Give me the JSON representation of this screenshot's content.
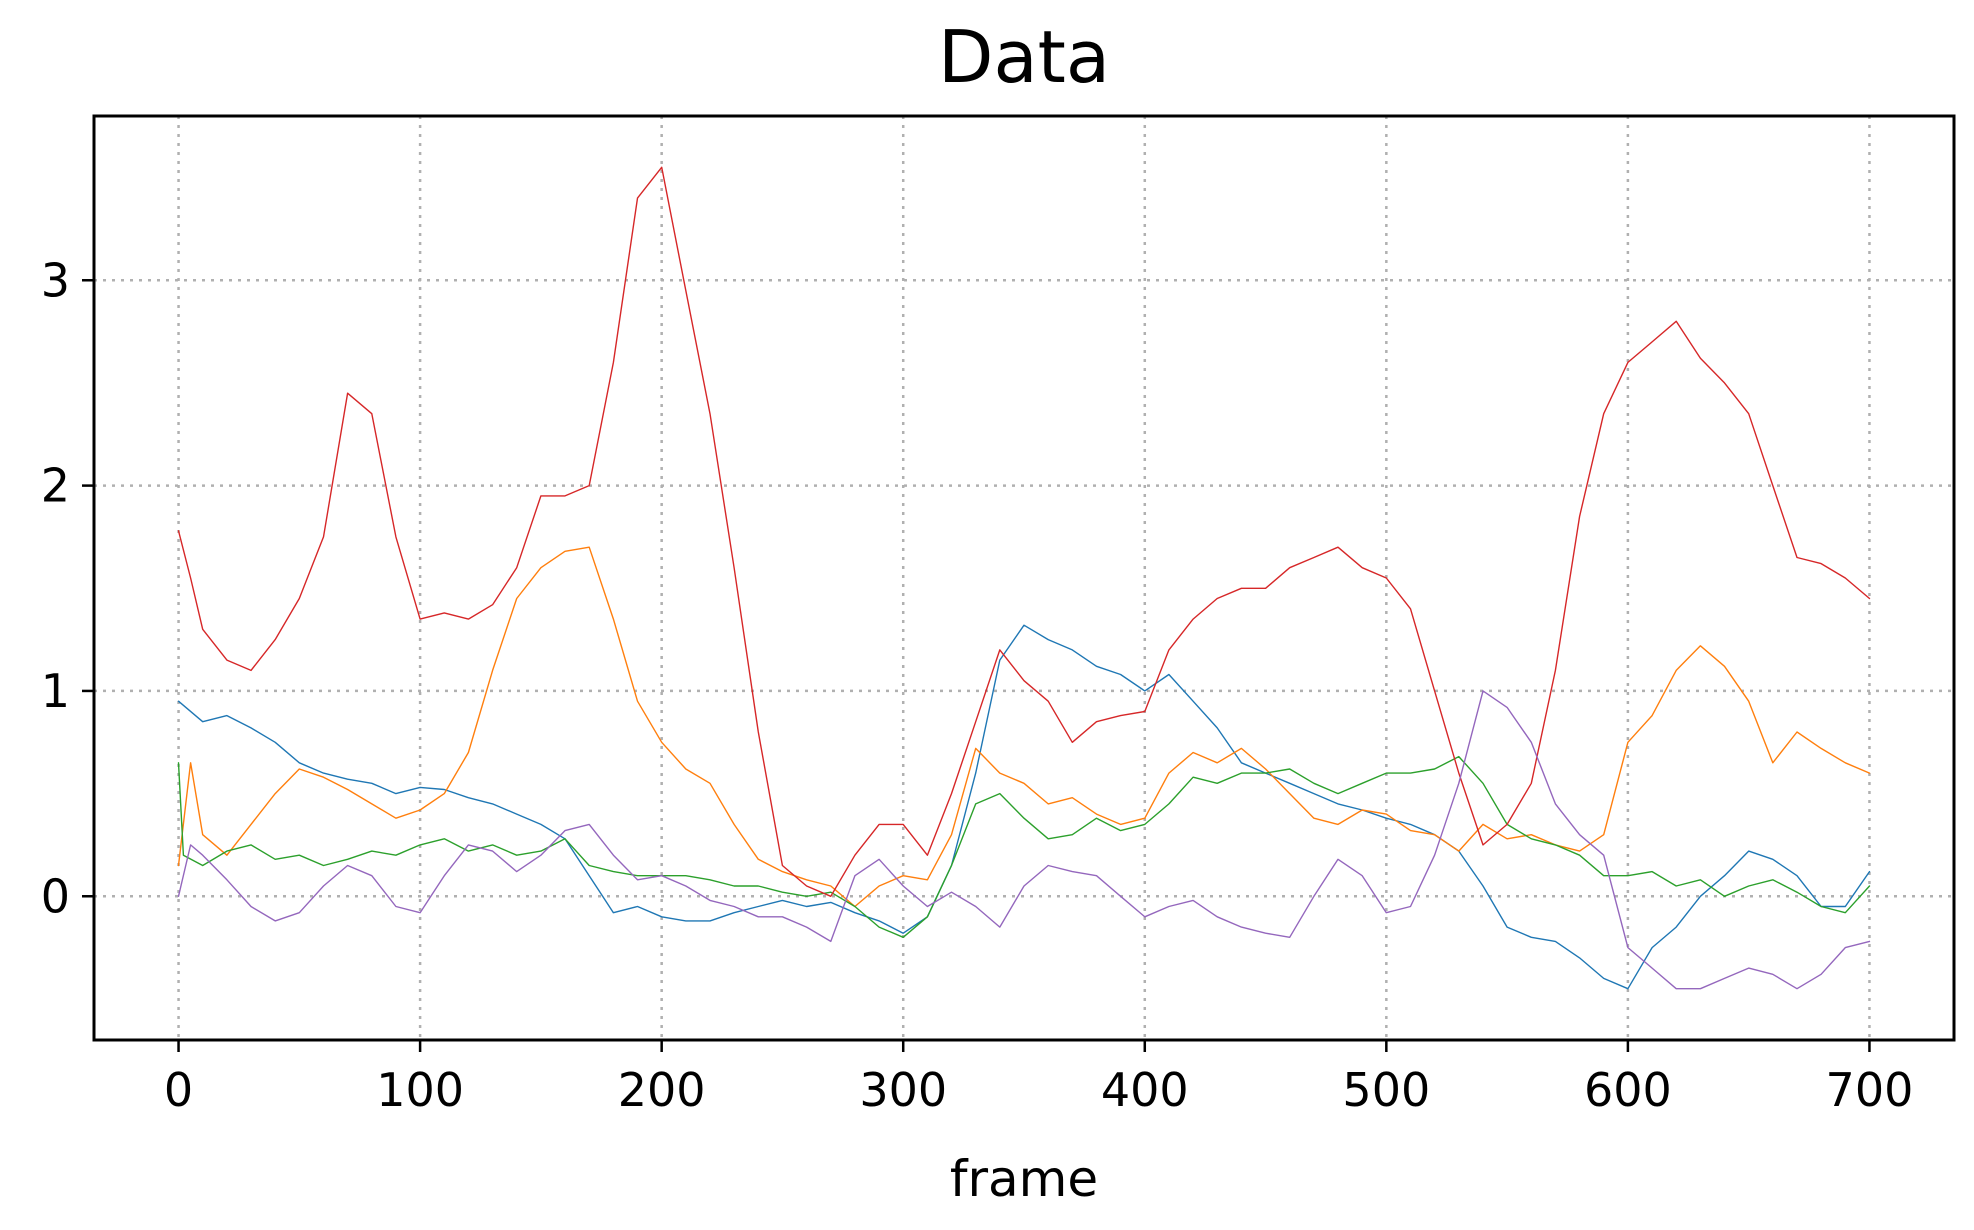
{
  "chart_data": {
    "type": "line",
    "title": "Data",
    "xlabel": "frame",
    "ylabel": "",
    "xlim": [
      -35,
      735
    ],
    "ylim": [
      -0.7,
      3.8
    ],
    "xticks": [
      0,
      100,
      200,
      300,
      400,
      500,
      600,
      700
    ],
    "xtick_labels": [
      "0",
      "100",
      "200",
      "300",
      "400",
      "500",
      "600",
      "700"
    ],
    "yticks": [
      0,
      1,
      2,
      3
    ],
    "ytick_labels": [
      "0",
      "1",
      "2",
      "3"
    ],
    "grid": true,
    "legend": "none",
    "series": [
      {
        "color": "#1f77b4",
        "x": [
          0,
          10,
          20,
          30,
          40,
          50,
          60,
          70,
          80,
          90,
          100,
          110,
          120,
          130,
          140,
          150,
          160,
          170,
          180,
          190,
          200,
          210,
          220,
          230,
          240,
          250,
          260,
          270,
          280,
          290,
          300,
          310,
          320,
          330,
          340,
          350,
          360,
          370,
          380,
          390,
          400,
          410,
          420,
          430,
          440,
          450,
          460,
          470,
          480,
          490,
          500,
          510,
          520,
          530,
          540,
          550,
          560,
          570,
          580,
          590,
          600,
          610,
          620,
          630,
          640,
          650,
          660,
          670,
          680,
          690,
          700
        ],
        "y": [
          0.95,
          0.85,
          0.88,
          0.82,
          0.75,
          0.65,
          0.6,
          0.57,
          0.55,
          0.5,
          0.53,
          0.52,
          0.48,
          0.45,
          0.4,
          0.35,
          0.28,
          0.1,
          -0.08,
          -0.05,
          -0.1,
          -0.12,
          -0.12,
          -0.08,
          -0.05,
          -0.02,
          -0.05,
          -0.03,
          -0.08,
          -0.12,
          -0.18,
          -0.1,
          0.15,
          0.6,
          1.15,
          1.32,
          1.25,
          1.2,
          1.12,
          1.08,
          1.0,
          1.08,
          0.95,
          0.82,
          0.65,
          0.6,
          0.55,
          0.5,
          0.45,
          0.42,
          0.38,
          0.35,
          0.3,
          0.22,
          0.05,
          -0.15,
          -0.2,
          -0.22,
          -0.3,
          -0.4,
          -0.45,
          -0.25,
          -0.15,
          0.0,
          0.1,
          0.22,
          0.18,
          0.1,
          -0.05,
          -0.05,
          0.12
        ]
      },
      {
        "color": "#ff7f0e",
        "x": [
          0,
          5,
          10,
          20,
          30,
          40,
          50,
          60,
          70,
          80,
          90,
          100,
          110,
          120,
          130,
          140,
          150,
          160,
          170,
          180,
          190,
          200,
          210,
          220,
          230,
          240,
          250,
          260,
          270,
          280,
          290,
          300,
          310,
          320,
          330,
          340,
          350,
          360,
          370,
          380,
          390,
          400,
          410,
          420,
          430,
          440,
          450,
          460,
          470,
          480,
          490,
          500,
          510,
          520,
          530,
          540,
          550,
          560,
          570,
          580,
          590,
          600,
          610,
          620,
          630,
          640,
          650,
          660,
          670,
          680,
          690,
          700
        ],
        "y": [
          0.15,
          0.65,
          0.3,
          0.2,
          0.35,
          0.5,
          0.62,
          0.58,
          0.52,
          0.45,
          0.38,
          0.42,
          0.5,
          0.7,
          1.1,
          1.45,
          1.6,
          1.68,
          1.7,
          1.35,
          0.95,
          0.75,
          0.62,
          0.55,
          0.35,
          0.18,
          0.12,
          0.08,
          0.05,
          -0.05,
          0.05,
          0.1,
          0.08,
          0.3,
          0.72,
          0.6,
          0.55,
          0.45,
          0.48,
          0.4,
          0.35,
          0.38,
          0.6,
          0.7,
          0.65,
          0.72,
          0.62,
          0.5,
          0.38,
          0.35,
          0.42,
          0.4,
          0.32,
          0.3,
          0.22,
          0.35,
          0.28,
          0.3,
          0.25,
          0.22,
          0.3,
          0.75,
          0.88,
          1.1,
          1.22,
          1.12,
          0.95,
          0.65,
          0.8,
          0.72,
          0.65,
          0.6
        ]
      },
      {
        "color": "#2ca02c",
        "x": [
          0,
          2,
          10,
          20,
          30,
          40,
          50,
          60,
          70,
          80,
          90,
          100,
          110,
          120,
          130,
          140,
          150,
          160,
          170,
          180,
          190,
          200,
          210,
          220,
          230,
          240,
          250,
          260,
          270,
          280,
          290,
          300,
          310,
          320,
          330,
          340,
          350,
          360,
          370,
          380,
          390,
          400,
          410,
          420,
          430,
          440,
          450,
          460,
          470,
          480,
          490,
          500,
          510,
          520,
          530,
          540,
          550,
          560,
          570,
          580,
          590,
          600,
          610,
          620,
          630,
          640,
          650,
          660,
          670,
          680,
          690,
          700
        ],
        "y": [
          0.65,
          0.2,
          0.15,
          0.22,
          0.25,
          0.18,
          0.2,
          0.15,
          0.18,
          0.22,
          0.2,
          0.25,
          0.28,
          0.22,
          0.25,
          0.2,
          0.22,
          0.28,
          0.15,
          0.12,
          0.1,
          0.1,
          0.1,
          0.08,
          0.05,
          0.05,
          0.02,
          0.0,
          0.02,
          -0.05,
          -0.15,
          -0.2,
          -0.1,
          0.15,
          0.45,
          0.5,
          0.38,
          0.28,
          0.3,
          0.38,
          0.32,
          0.35,
          0.45,
          0.58,
          0.55,
          0.6,
          0.6,
          0.62,
          0.55,
          0.5,
          0.55,
          0.6,
          0.6,
          0.62,
          0.68,
          0.55,
          0.35,
          0.28,
          0.25,
          0.2,
          0.1,
          0.1,
          0.12,
          0.05,
          0.08,
          0.0,
          0.05,
          0.08,
          0.02,
          -0.05,
          -0.08,
          0.05
        ]
      },
      {
        "color": "#d62728",
        "x": [
          0,
          5,
          10,
          20,
          30,
          40,
          50,
          60,
          70,
          80,
          90,
          100,
          110,
          120,
          130,
          140,
          150,
          160,
          170,
          180,
          190,
          200,
          210,
          220,
          230,
          240,
          250,
          260,
          270,
          280,
          290,
          300,
          310,
          320,
          330,
          340,
          350,
          360,
          370,
          380,
          390,
          400,
          410,
          420,
          430,
          440,
          450,
          460,
          470,
          480,
          490,
          500,
          510,
          520,
          530,
          540,
          550,
          560,
          570,
          580,
          590,
          600,
          610,
          620,
          630,
          640,
          650,
          660,
          670,
          680,
          690,
          700
        ],
        "y": [
          1.78,
          1.55,
          1.3,
          1.15,
          1.1,
          1.25,
          1.45,
          1.75,
          2.45,
          2.35,
          1.75,
          1.35,
          1.38,
          1.35,
          1.42,
          1.6,
          1.95,
          1.95,
          2.0,
          2.6,
          3.4,
          3.55,
          2.95,
          2.35,
          1.6,
          0.8,
          0.15,
          0.05,
          0.0,
          0.2,
          0.35,
          0.35,
          0.2,
          0.5,
          0.85,
          1.2,
          1.05,
          0.95,
          0.75,
          0.85,
          0.88,
          0.9,
          1.2,
          1.35,
          1.45,
          1.5,
          1.5,
          1.6,
          1.65,
          1.7,
          1.6,
          1.55,
          1.4,
          1.0,
          0.6,
          0.25,
          0.35,
          0.55,
          1.1,
          1.85,
          2.35,
          2.6,
          2.7,
          2.8,
          2.62,
          2.5,
          2.35,
          2.0,
          1.65,
          1.62,
          1.55,
          1.45
        ]
      },
      {
        "color": "#9467bd",
        "x": [
          0,
          5,
          10,
          20,
          30,
          40,
          50,
          60,
          70,
          80,
          90,
          100,
          110,
          120,
          130,
          140,
          150,
          160,
          170,
          180,
          190,
          200,
          210,
          220,
          230,
          240,
          250,
          260,
          270,
          280,
          290,
          300,
          310,
          320,
          330,
          340,
          350,
          360,
          370,
          380,
          390,
          400,
          410,
          420,
          430,
          440,
          450,
          460,
          470,
          480,
          490,
          500,
          510,
          520,
          530,
          540,
          550,
          560,
          570,
          580,
          590,
          600,
          610,
          620,
          630,
          640,
          650,
          660,
          670,
          680,
          690,
          700
        ],
        "y": [
          0.0,
          0.25,
          0.2,
          0.08,
          -0.05,
          -0.12,
          -0.08,
          0.05,
          0.15,
          0.1,
          -0.05,
          -0.08,
          0.1,
          0.25,
          0.22,
          0.12,
          0.2,
          0.32,
          0.35,
          0.2,
          0.08,
          0.1,
          0.05,
          -0.02,
          -0.05,
          -0.1,
          -0.1,
          -0.15,
          -0.22,
          0.1,
          0.18,
          0.05,
          -0.05,
          0.02,
          -0.05,
          -0.15,
          0.05,
          0.15,
          0.12,
          0.1,
          0.0,
          -0.1,
          -0.05,
          -0.02,
          -0.1,
          -0.15,
          -0.18,
          -0.2,
          0.0,
          0.18,
          0.1,
          -0.08,
          -0.05,
          0.2,
          0.55,
          1.0,
          0.92,
          0.75,
          0.45,
          0.3,
          0.2,
          -0.25,
          -0.35,
          -0.45,
          -0.45,
          -0.4,
          -0.35,
          -0.38,
          -0.45,
          -0.38,
          -0.25,
          -0.22
        ]
      }
    ]
  }
}
